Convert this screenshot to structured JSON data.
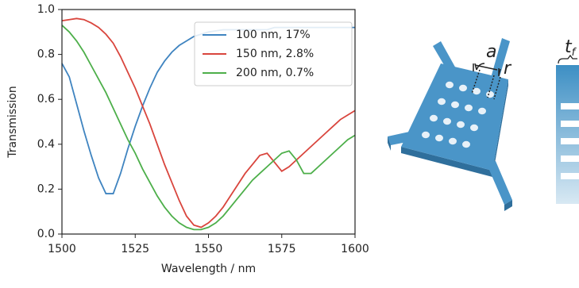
{
  "chart_data": {
    "type": "line",
    "xlabel": "Wavelength / nm",
    "ylabel": "Transmission",
    "x": [
      1500,
      1502.5,
      1505,
      1507.5,
      1510,
      1512.5,
      1515,
      1517.5,
      1520,
      1522.5,
      1525,
      1527.5,
      1530,
      1532.5,
      1535,
      1537.5,
      1540,
      1542.5,
      1545,
      1547.5,
      1550,
      1552.5,
      1555,
      1557.5,
      1560,
      1562.5,
      1565,
      1567.5,
      1570,
      1572.5,
      1575,
      1577.5,
      1580,
      1582.5,
      1585,
      1587.5,
      1590,
      1592.5,
      1595,
      1597.5,
      1600
    ],
    "series": [
      {
        "name": "100 nm, 17%",
        "color": "#3f84c0",
        "values": [
          0.76,
          0.7,
          0.58,
          0.46,
          0.35,
          0.25,
          0.18,
          0.18,
          0.27,
          0.38,
          0.48,
          0.57,
          0.65,
          0.72,
          0.77,
          0.81,
          0.84,
          0.86,
          0.88,
          0.89,
          0.9,
          0.905,
          0.91,
          0.91,
          0.91,
          0.91,
          0.91,
          0.91,
          0.91,
          0.92,
          0.92,
          0.92,
          0.92,
          0.92,
          0.92,
          0.92,
          0.92,
          0.92,
          0.92,
          0.92,
          0.92
        ]
      },
      {
        "name": "150 nm, 2.8%",
        "color": "#d9453d",
        "values": [
          0.95,
          0.955,
          0.96,
          0.955,
          0.94,
          0.92,
          0.89,
          0.85,
          0.79,
          0.72,
          0.65,
          0.57,
          0.49,
          0.4,
          0.31,
          0.23,
          0.15,
          0.08,
          0.04,
          0.03,
          0.05,
          0.08,
          0.12,
          0.17,
          0.22,
          0.27,
          0.31,
          0.35,
          0.36,
          0.32,
          0.28,
          0.3,
          0.33,
          0.36,
          0.39,
          0.42,
          0.45,
          0.48,
          0.51,
          0.53,
          0.55
        ]
      },
      {
        "name": "200 nm, 0.7%",
        "color": "#4daf4a",
        "values": [
          0.93,
          0.9,
          0.86,
          0.81,
          0.75,
          0.69,
          0.63,
          0.56,
          0.49,
          0.42,
          0.36,
          0.29,
          0.23,
          0.17,
          0.12,
          0.08,
          0.05,
          0.03,
          0.02,
          0.02,
          0.03,
          0.05,
          0.08,
          0.12,
          0.16,
          0.2,
          0.24,
          0.27,
          0.3,
          0.33,
          0.36,
          0.37,
          0.33,
          0.27,
          0.27,
          0.3,
          0.33,
          0.36,
          0.39,
          0.42,
          0.44
        ]
      }
    ],
    "xlim": [
      1500,
      1600
    ],
    "xticks": [
      1500,
      1525,
      1550,
      1575,
      1600
    ],
    "ylim": [
      0,
      1
    ],
    "yticks": [
      {
        "value": 0,
        "label": "0.0"
      },
      0.2,
      0.4,
      0.6,
      0.8,
      {
        "value": 1,
        "label": "1.0"
      }
    ],
    "grid": false,
    "legend": "upper right"
  },
  "illustration": {
    "a": "a",
    "r": "r",
    "t": "t",
    "t_sub": "f"
  }
}
